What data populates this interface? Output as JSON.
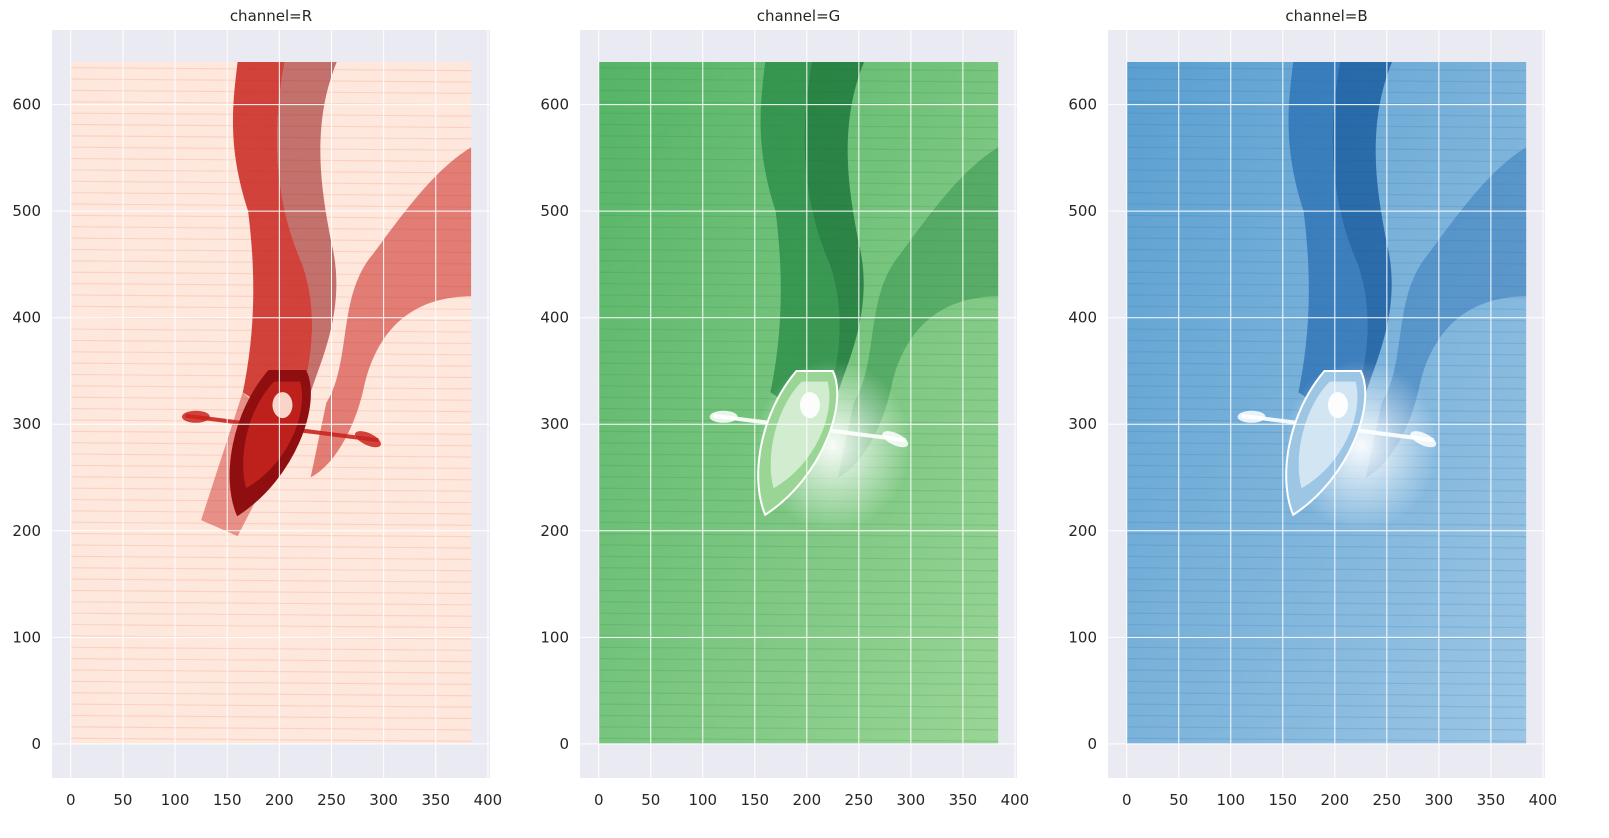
{
  "chart_data": [
    {
      "type": "heatmap",
      "title": "channel=R",
      "colormap": "Reds",
      "xlim": [
        -18,
        402
      ],
      "ylim": [
        -32,
        670
      ],
      "extent": [
        0,
        384,
        0,
        640
      ],
      "xticks": [
        0,
        50,
        100,
        150,
        200,
        250,
        300,
        350,
        400
      ],
      "yticks": [
        0,
        100,
        200,
        300,
        400,
        500,
        600
      ],
      "grid": true,
      "colors": {
        "light": "#fee8dd",
        "mid": "#f7a98a",
        "dark": "#c9251f",
        "darkest": "#8f0f10"
      }
    },
    {
      "type": "heatmap",
      "title": "channel=G",
      "colormap": "Greens",
      "xlim": [
        -18,
        402
      ],
      "ylim": [
        -32,
        670
      ],
      "extent": [
        0,
        384,
        0,
        640
      ],
      "xticks": [
        0,
        50,
        100,
        150,
        200,
        250,
        300,
        350,
        400
      ],
      "yticks": [
        0,
        100,
        200,
        300,
        400,
        500,
        600
      ],
      "grid": true,
      "colors": {
        "light": "#9ad596",
        "mid": "#55b466",
        "dark": "#278a45",
        "darkest": "#0e6b30"
      }
    },
    {
      "type": "heatmap",
      "title": "channel=B",
      "colormap": "Blues",
      "xlim": [
        -18,
        402
      ],
      "ylim": [
        -32,
        670
      ],
      "extent": [
        0,
        384,
        0,
        640
      ],
      "xticks": [
        0,
        50,
        100,
        150,
        200,
        250,
        300,
        350,
        400
      ],
      "yticks": [
        0,
        100,
        200,
        300,
        400,
        500,
        600
      ],
      "grid": true,
      "colors": {
        "light": "#9cc6e4",
        "mid": "#5a9fd0",
        "dark": "#2a6fb3",
        "darkest": "#0c4f96"
      }
    }
  ]
}
